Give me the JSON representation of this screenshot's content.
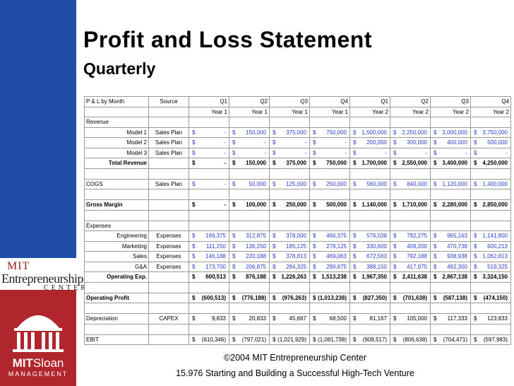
{
  "title": "Profit and Loss Statement",
  "subtitle": "Quarterly",
  "logo": {
    "mit": "MIT",
    "entrepreneurship": "Entrepreneurship",
    "center": "CENTER",
    "sloan_a": "MIT",
    "sloan_b": "Sloan",
    "sloan_c": "MANAGEMENT"
  },
  "colors": {
    "sidebar_blue": "#1f4da8",
    "sidebar_red": "#b1262d",
    "link_blue": "#2c3fcf"
  },
  "table": {
    "header_label": "P & L by Month",
    "header_source": "Source",
    "quarters": [
      "Q1",
      "Q2",
      "Q3",
      "Q4",
      "Q1",
      "Q2",
      "Q3",
      "Q4"
    ],
    "years": [
      "Year 1",
      "Year 1",
      "Year 1",
      "Year 1",
      "Year 2",
      "Year 2",
      "Year 2",
      "Year 2"
    ],
    "revenue_section": "Revenue",
    "models": [
      {
        "label": "Model 1",
        "source": "Sales Plan",
        "values": [
          "-",
          "150,000",
          "375,000",
          "750,000",
          "1,500,000",
          "2,250,000",
          "3,000,000",
          "3,750,000"
        ]
      },
      {
        "label": "Model 2",
        "source": "Sales Plan",
        "values": [
          "-",
          "-",
          "-",
          "-",
          "200,000",
          "300,000",
          "400,000",
          "500,000"
        ]
      },
      {
        "label": "Model 3",
        "source": "Sales Plan",
        "values": [
          "-",
          "-",
          "-",
          "-",
          "-",
          "-",
          "-",
          "-"
        ]
      }
    ],
    "total_revenue": {
      "label": "Total Revenue",
      "values": [
        "-",
        "150,000",
        "375,000",
        "750,000",
        "1,700,000",
        "2,550,000",
        "3,400,000",
        "4,250,000"
      ]
    },
    "cogs": {
      "label": "COGS",
      "source": "Sales Plan",
      "values": [
        "-",
        "50,000",
        "125,000",
        "250,000",
        "560,000",
        "840,000",
        "1,120,000",
        "1,400,000"
      ]
    },
    "gross_margin": {
      "label": "Gross Margin",
      "values": [
        "-",
        "100,000",
        "250,000",
        "500,000",
        "1,140,000",
        "1,710,000",
        "2,280,000",
        "2,850,000"
      ]
    },
    "expenses_section": "Expenses",
    "expenses": [
      {
        "label": "Engineering",
        "source": "Expenses",
        "values": [
          "169,375",
          "312,875",
          "378,000",
          "466,375",
          "576,038",
          "792,275",
          "965,163",
          "1,141,800"
        ]
      },
      {
        "label": "Marketing",
        "source": "Expenses",
        "values": [
          "111,250",
          "136,250",
          "185,125",
          "278,125",
          "330,600",
          "409,200",
          "470,738",
          "600,213"
        ]
      },
      {
        "label": "Sales",
        "source": "Expenses",
        "values": [
          "146,188",
          "220,188",
          "378,813",
          "469,063",
          "672,563",
          "792,188",
          "938,938",
          "1,062,813"
        ]
      },
      {
        "label": "G&A",
        "source": "Expenses",
        "values": [
          "173,700",
          "206,875",
          "284,325",
          "299,675",
          "388,150",
          "417,975",
          "492,300",
          "519,325"
        ]
      }
    ],
    "operating_exp": {
      "label": "Operating Exp.",
      "values": [
        "600,513",
        "876,188",
        "1,226,263",
        "1,513,238",
        "1,967,350",
        "2,411,638",
        "2,867,138",
        "3,324,150"
      ]
    },
    "operating_profit": {
      "label": "Operating Profit",
      "values": [
        "(600,513)",
        "(776,188)",
        "(976,263)",
        "(1,013,238)",
        "(827,350)",
        "(701,638)",
        "(587,138)",
        "(474,150)"
      ]
    },
    "depreciation": {
      "label": "Depreciation",
      "source": "CAPEX",
      "values": [
        "9,833",
        "20,833",
        "45,667",
        "68,500",
        "81,167",
        "105,000",
        "117,333",
        "123,833"
      ]
    },
    "ebit": {
      "label": "EBIT",
      "values": [
        "(610,346)",
        "(797,021)",
        "(1,021,929)",
        "(1,081,738)",
        "(908,517)",
        "(806,638)",
        "(704,471)",
        "(597,983)"
      ]
    },
    "currency": "$"
  },
  "footer": {
    "line1": "©2004 MIT Entrepreneurship Center",
    "line2": "15.976 Starting and Building a Successful High-Tech Venture"
  }
}
